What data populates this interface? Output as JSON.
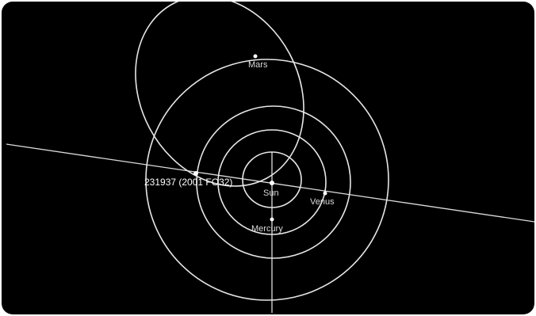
{
  "view": {
    "background": "#000000",
    "orbit_color": "#e6e6e6",
    "label_color": "#d9d9d9"
  },
  "labels": {
    "sun": "Sun",
    "mercury": "Mercury",
    "venus": "Venus",
    "mars": "Mars",
    "asteroid": "231937 (2001 FO32)"
  }
}
